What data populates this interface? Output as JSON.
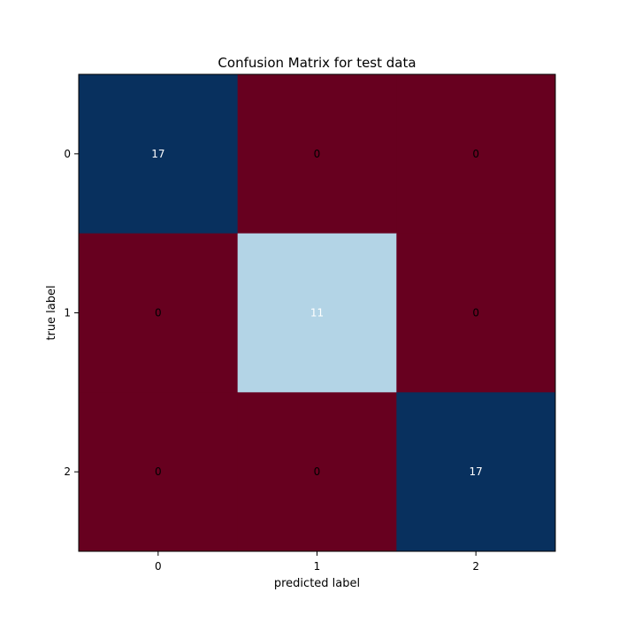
{
  "chart_data": {
    "type": "heatmap",
    "title": "Confusion Matrix for test data",
    "xlabel": "predicted label",
    "ylabel": "true label",
    "x_categories": [
      "0",
      "1",
      "2"
    ],
    "y_categories": [
      "0",
      "1",
      "2"
    ],
    "matrix": [
      [
        17,
        0,
        0
      ],
      [
        0,
        11,
        0
      ],
      [
        0,
        0,
        17
      ]
    ],
    "colormap": "RdBu",
    "cell_colors": [
      [
        "#08305e",
        "#67001f",
        "#67001f"
      ],
      [
        "#67001f",
        "#b3d4e6",
        "#67001f"
      ],
      [
        "#67001f",
        "#67001f",
        "#08305e"
      ]
    ],
    "cell_text_colors": [
      [
        "#ffffff",
        "#000000",
        "#000000"
      ],
      [
        "#000000",
        "#ffffff",
        "#000000"
      ],
      [
        "#000000",
        "#000000",
        "#ffffff"
      ]
    ],
    "grid": false
  }
}
